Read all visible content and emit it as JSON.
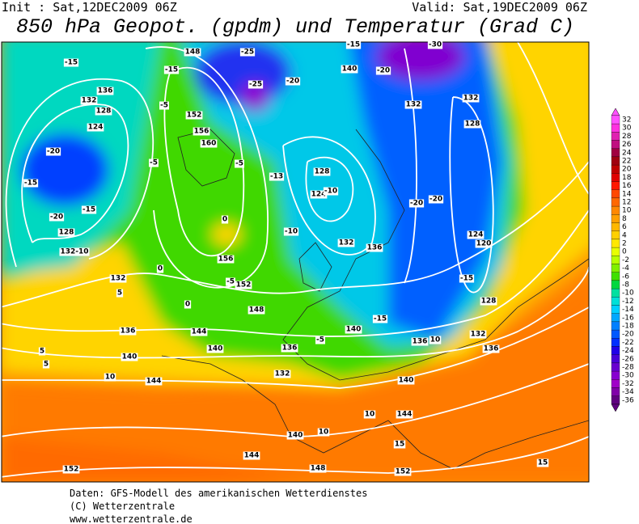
{
  "header": {
    "init": "Init : Sat,12DEC2009 06Z",
    "valid": "Valid: Sat,19DEC2009 06Z",
    "title": "850 hPa Geopot. (gpdm) und Temperatur (Grad C)"
  },
  "colorbar": {
    "ticks": [
      32,
      30,
      28,
      26,
      24,
      22,
      20,
      18,
      16,
      14,
      12,
      10,
      8,
      6,
      4,
      2,
      0,
      -2,
      -4,
      -6,
      -8,
      -10,
      -12,
      -14,
      -16,
      -18,
      -20,
      -22,
      -24,
      -26,
      -28,
      -30,
      -32,
      -34,
      -36
    ],
    "colors": [
      "#ff50ff",
      "#ff30e0",
      "#e020b0",
      "#c01080",
      "#a00040",
      "#a00010",
      "#c00000",
      "#e00000",
      "#ff1800",
      "#ff4800",
      "#ff6800",
      "#ff8800",
      "#ffa000",
      "#ffb800",
      "#ffd000",
      "#ffe800",
      "#e8ff00",
      "#b8ff00",
      "#80f000",
      "#40e000",
      "#00d840",
      "#00e0a0",
      "#00e0d8",
      "#00d0ff",
      "#00a8ff",
      "#0080ff",
      "#0058ff",
      "#0030ff",
      "#2000e8",
      "#4800d8",
      "#6800d0",
      "#8800d0",
      "#a000c8",
      "#8000a8",
      "#600080"
    ]
  },
  "contour_labels": [
    "-15",
    "-15",
    "148",
    "-25",
    "-15",
    "-30",
    "136",
    "132",
    "128",
    "124",
    "-20",
    "-15",
    "-20",
    "-15",
    "128",
    "132-10",
    "140",
    "-20",
    "-20",
    "-25",
    "132",
    "132",
    "128",
    "-5",
    "152",
    "156",
    "160",
    "-5",
    "-5",
    "-13",
    "128",
    "124",
    "-10",
    "0",
    "156",
    "-5",
    "152",
    "-10",
    "132",
    "136",
    "-20",
    "-20",
    "124",
    "120",
    "-15",
    "132",
    "0",
    "0",
    "5",
    "136",
    "148",
    "144",
    "140",
    "140",
    "136",
    "-5",
    "-15",
    "136",
    "10",
    "132",
    "136",
    "128",
    "140",
    "10",
    "144",
    "132",
    "140",
    "144",
    "10",
    "140",
    "10",
    "144",
    "148",
    "15",
    "152",
    "152",
    "15",
    "5",
    "5"
  ],
  "footer": [
    "Daten: GFS-Modell des amerikanischen Wetterdienstes",
    "(C) Wetterzentrale",
    "www.wetterzentrale.de"
  ]
}
